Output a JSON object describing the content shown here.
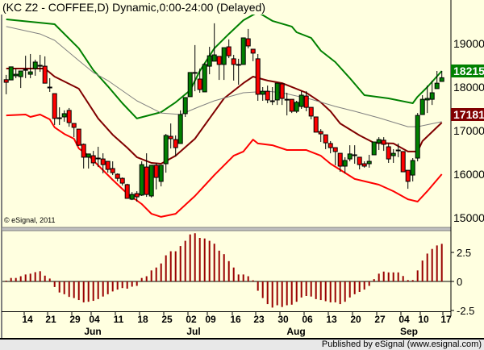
{
  "header": {
    "title": "(KC Z2 - COFFEE,D) Dynamic,0:00-24:00 (Delayed)"
  },
  "footer": {
    "published": "Published by eSignal (www.esignal.com)",
    "copyright": "© eSignal, 2011"
  },
  "colors": {
    "background": "#ffffe0",
    "up": "#008000",
    "down": "#ff0000",
    "upper_band": "#008000",
    "middle_band": "#800000",
    "lower_band": "#ff0000",
    "moving_average": "#808080",
    "histogram": "#990000",
    "last_price_bg": "#008000",
    "middle_band_bg": "#800000"
  },
  "chart_data": [
    {
      "type": "candlestick",
      "title": "(KC Z2 - COFFEE,D) Dynamic,0:00-24:00 (Delayed)",
      "y_axis": {
        "position": "right",
        "ticks": [
          "19000",
          "18000",
          "17000",
          "16000",
          "15000"
        ],
        "tick_values": [
          19000,
          18000,
          17000,
          16000,
          15000
        ],
        "range": [
          14750,
          19850
        ]
      },
      "last_labels": [
        {
          "text": "18215",
          "value": 18215,
          "color": "#008000"
        },
        {
          "text": "17181",
          "value": 17181,
          "color": "#800000"
        }
      ],
      "grid": false,
      "candles_ohlc": [
        [
          18170,
          18280,
          17835,
          18110
        ],
        [
          18165,
          18465,
          18165,
          18465
        ],
        [
          18260,
          18425,
          18205,
          18295
        ],
        [
          18240,
          18370,
          17980,
          18370
        ],
        [
          18390,
          18720,
          18205,
          18405
        ],
        [
          18295,
          18760,
          18205,
          18350
        ],
        [
          18425,
          18630,
          18260,
          18575
        ],
        [
          18480,
          18740,
          18350,
          18500
        ],
        [
          18480,
          18705,
          18090,
          18090
        ],
        [
          18000,
          18205,
          17890,
          18000
        ],
        [
          17850,
          17850,
          17130,
          17280
        ],
        [
          17295,
          17535,
          17130,
          17295
        ],
        [
          17315,
          17465,
          17205,
          17390
        ],
        [
          17465,
          17520,
          17090,
          17185
        ],
        [
          17165,
          17165,
          16850,
          17075
        ],
        [
          17035,
          17035,
          16650,
          16665
        ],
        [
          16685,
          16705,
          16130,
          16390
        ],
        [
          16390,
          16465,
          16130,
          16465
        ],
        [
          16425,
          16535,
          16185,
          16260
        ],
        [
          16370,
          16630,
          16165,
          16370
        ],
        [
          16350,
          16480,
          16020,
          16220
        ],
        [
          16295,
          16295,
          16035,
          16110
        ],
        [
          16130,
          16295,
          15980,
          16035
        ],
        [
          16000,
          16020,
          15835,
          15905
        ],
        [
          15905,
          15925,
          15740,
          15795
        ],
        [
          15760,
          15780,
          15445,
          15445
        ],
        [
          15425,
          15590,
          15405,
          15535
        ],
        [
          15555,
          15610,
          15370,
          15480
        ],
        [
          15520,
          16295,
          15500,
          16220
        ],
        [
          16165,
          16480,
          15480,
          15535
        ],
        [
          15500,
          16205,
          15465,
          16205
        ],
        [
          16205,
          16260,
          15650,
          15925
        ],
        [
          15835,
          16205,
          15720,
          16205
        ],
        [
          16240,
          16925,
          16035,
          16890
        ],
        [
          16870,
          17165,
          16590,
          16815
        ],
        [
          16795,
          16890,
          16405,
          16610
        ],
        [
          16705,
          17465,
          16705,
          17370
        ],
        [
          17390,
          17760,
          17315,
          17760
        ],
        [
          17780,
          18335,
          17780,
          18335
        ],
        [
          18335,
          18965,
          17905,
          18335
        ],
        [
          18185,
          18425,
          17870,
          17945
        ],
        [
          17890,
          18555,
          17890,
          18520
        ],
        [
          18480,
          18925,
          18295,
          18720
        ],
        [
          18595,
          19465,
          18595,
          18740
        ],
        [
          18705,
          18705,
          18165,
          18520
        ],
        [
          18520,
          18905,
          18165,
          18905
        ],
        [
          18925,
          19095,
          18665,
          18720
        ],
        [
          18650,
          18740,
          18150,
          18520
        ],
        [
          18520,
          18650,
          18055,
          18520
        ],
        [
          18520,
          19130,
          18520,
          19130
        ],
        [
          19110,
          19335,
          18890,
          18945
        ],
        [
          18870,
          18870,
          18595,
          18780
        ],
        [
          18650,
          18760,
          17685,
          17835
        ],
        [
          17835,
          18000,
          17685,
          17905
        ],
        [
          17905,
          18035,
          17630,
          17705
        ],
        [
          17685,
          18000,
          17590,
          17685
        ],
        [
          17705,
          18090,
          17590,
          18090
        ],
        [
          18075,
          18075,
          17590,
          17740
        ],
        [
          17720,
          17870,
          17350,
          17720
        ],
        [
          17720,
          17720,
          17405,
          17445
        ],
        [
          17445,
          17685,
          17405,
          17650
        ],
        [
          17555,
          17905,
          17500,
          17815
        ],
        [
          17795,
          17905,
          17445,
          17535
        ],
        [
          17535,
          17535,
          17260,
          17335
        ],
        [
          17315,
          17315,
          16965,
          16965
        ],
        [
          16980,
          17035,
          16740,
          16925
        ],
        [
          16905,
          16905,
          16575,
          16720
        ],
        [
          16705,
          16760,
          16480,
          16610
        ],
        [
          16610,
          16610,
          16205,
          16520
        ],
        [
          16480,
          16480,
          16055,
          16185
        ],
        [
          16185,
          16390,
          16020,
          16315
        ],
        [
          16350,
          16665,
          16295,
          16465
        ],
        [
          16445,
          16665,
          16240,
          16445
        ],
        [
          16390,
          16390,
          16110,
          16220
        ],
        [
          16240,
          16295,
          16150,
          16185
        ],
        [
          16240,
          16445,
          16150,
          16295
        ],
        [
          16445,
          16740,
          16445,
          16740
        ],
        [
          16720,
          16850,
          16555,
          16795
        ],
        [
          16780,
          16850,
          16535,
          16685
        ],
        [
          16630,
          16705,
          16260,
          16350
        ],
        [
          16425,
          16575,
          16260,
          16480
        ],
        [
          16555,
          16705,
          16390,
          16555
        ],
        [
          16520,
          16520,
          16055,
          16055
        ],
        [
          16090,
          16090,
          15665,
          15835
        ],
        [
          15980,
          16370,
          15835,
          16315
        ],
        [
          16370,
          17405,
          16295,
          17350
        ],
        [
          17370,
          17815,
          17370,
          17720
        ],
        [
          17705,
          18035,
          17405,
          17740
        ],
        [
          17720,
          18150,
          17590,
          17870
        ],
        [
          17965,
          18370,
          17965,
          18090
        ],
        [
          18130,
          18370,
          18130,
          18215
        ]
      ],
      "overlays": [
        {
          "role": "upper_band",
          "color": "#008000",
          "points": [
            [
              0,
              19555
            ],
            [
              10,
              19445
            ],
            [
              15,
              18890
            ],
            [
              18,
              18390
            ],
            [
              21,
              18020
            ],
            [
              24,
              17630
            ],
            [
              27,
              17280
            ],
            [
              32,
              17425
            ],
            [
              35,
              17650
            ],
            [
              38,
              17925
            ],
            [
              40,
              18370
            ],
            [
              43,
              18890
            ],
            [
              46,
              19220
            ],
            [
              49,
              19535
            ],
            [
              52,
              19720
            ],
            [
              55,
              19520
            ],
            [
              59,
              19390
            ],
            [
              60,
              19260
            ],
            [
              63,
              19130
            ],
            [
              65,
              18835
            ],
            [
              68,
              18575
            ],
            [
              71,
              18205
            ],
            [
              74,
              17815
            ],
            [
              79,
              17740
            ],
            [
              84,
              17630
            ],
            [
              85,
              17780
            ],
            [
              87,
              18000
            ],
            [
              90,
              18370
            ]
          ]
        },
        {
          "role": "middle_band",
          "color": "#800000",
          "points": [
            [
              0,
              18425
            ],
            [
              8,
              18425
            ],
            [
              10,
              18240
            ],
            [
              15,
              17963
            ],
            [
              19,
              17280
            ],
            [
              22,
              16905
            ],
            [
              25,
              16610
            ],
            [
              27,
              16390
            ],
            [
              30,
              16260
            ],
            [
              32,
              16240
            ],
            [
              35,
              16425
            ],
            [
              39,
              16815
            ],
            [
              42,
              17280
            ],
            [
              45,
              17740
            ],
            [
              49,
              18090
            ],
            [
              51,
              18240
            ],
            [
              54,
              18150
            ],
            [
              57,
              18090
            ],
            [
              62,
              17870
            ],
            [
              65,
              17650
            ],
            [
              67,
              17445
            ],
            [
              69,
              17165
            ],
            [
              73,
              16890
            ],
            [
              76,
              16720
            ],
            [
              80,
              16705
            ],
            [
              83,
              16520
            ],
            [
              85,
              16520
            ],
            [
              86,
              16760
            ],
            [
              90,
              17185
            ]
          ]
        },
        {
          "role": "lower_band",
          "color": "#ff0000",
          "points": [
            [
              0,
              17350
            ],
            [
              4,
              17370
            ],
            [
              5,
              17315
            ],
            [
              7,
              17370
            ],
            [
              9,
              17260
            ],
            [
              10,
              17075
            ],
            [
              12,
              16925
            ],
            [
              14,
              16815
            ],
            [
              15,
              16590
            ],
            [
              17,
              16425
            ],
            [
              22,
              15870
            ],
            [
              25,
              15555
            ],
            [
              28,
              15315
            ],
            [
              30,
              15090
            ],
            [
              32,
              15020
            ],
            [
              35,
              15090
            ],
            [
              39,
              15500
            ],
            [
              43,
              15980
            ],
            [
              47,
              16425
            ],
            [
              49,
              16520
            ],
            [
              51,
              16795
            ],
            [
              52,
              16705
            ],
            [
              55,
              16665
            ],
            [
              58,
              16555
            ],
            [
              62,
              16555
            ],
            [
              65,
              16425
            ],
            [
              67,
              16240
            ],
            [
              72,
              15890
            ],
            [
              77,
              15760
            ],
            [
              80,
              15610
            ],
            [
              83,
              15425
            ],
            [
              85,
              15370
            ],
            [
              87,
              15610
            ],
            [
              90,
              16000
            ]
          ]
        },
        {
          "role": "moving_average",
          "color": "#808080",
          "points": [
            [
              0,
              19390
            ],
            [
              7,
              19220
            ],
            [
              10,
              19075
            ],
            [
              15,
              18610
            ],
            [
              18,
              18335
            ],
            [
              21,
              18150
            ],
            [
              27,
              17685
            ],
            [
              32,
              17405
            ],
            [
              36,
              17370
            ],
            [
              40,
              17555
            ],
            [
              43,
              17685
            ],
            [
              49,
              17870
            ],
            [
              54,
              17905
            ],
            [
              57,
              17870
            ],
            [
              63,
              17720
            ],
            [
              68,
              17555
            ],
            [
              72,
              17445
            ],
            [
              77,
              17295
            ],
            [
              83,
              17090
            ],
            [
              85,
              17090
            ],
            [
              90,
              17205
            ]
          ]
        }
      ]
    },
    {
      "type": "bar",
      "y_axis": {
        "position": "right",
        "ticks": [
          "2.5",
          "0",
          "-2.5"
        ],
        "tick_values": [
          2.5,
          0,
          -2.5
        ],
        "range": [
          -2.5,
          4.3
        ]
      },
      "color": "#990000",
      "values": [
        0.07,
        0.3,
        0.3,
        0.45,
        0.6,
        0.67,
        0.8,
        0.88,
        0.5,
        0.25,
        -0.48,
        -0.95,
        -1.1,
        -1.33,
        -1.43,
        -1.6,
        -1.8,
        -1.75,
        -1.67,
        -1.52,
        -1.3,
        -1.1,
        -0.86,
        -0.7,
        -0.57,
        -0.62,
        -0.45,
        -0.38,
        0.3,
        0.45,
        0.95,
        1.2,
        1.55,
        2.25,
        2.6,
        2.6,
        3.05,
        3.5,
        4.05,
        4.15,
        3.75,
        3.7,
        3.5,
        3.25,
        2.65,
        2.35,
        1.75,
        1.2,
        0.6,
        0.6,
        0.45,
        0.1,
        -0.8,
        -1.43,
        -1.95,
        -2.25,
        -2.05,
        -2.2,
        -2.05,
        -2.0,
        -1.75,
        -1.38,
        -1.25,
        -1.3,
        -1.52,
        -1.6,
        -1.7,
        -1.8,
        -1.8,
        -1.95,
        -1.75,
        -1.38,
        -1.1,
        -0.9,
        -0.7,
        -0.38,
        0.2,
        0.67,
        0.85,
        0.78,
        0.78,
        0.78,
        0.47,
        0.12,
        0.12,
        0.95,
        1.8,
        2.4,
        2.8,
        3.1,
        3.24
      ]
    }
  ],
  "x_axis": {
    "day_labels": [
      "14",
      "21",
      "29",
      "04",
      "11",
      "18",
      "25",
      "02",
      "09",
      "16",
      "23",
      "30",
      "06",
      "13",
      "20",
      "27",
      "04",
      "10",
      "17"
    ],
    "month_labels": [
      "Jun",
      "Jul",
      "Aug",
      "Sep"
    ]
  }
}
